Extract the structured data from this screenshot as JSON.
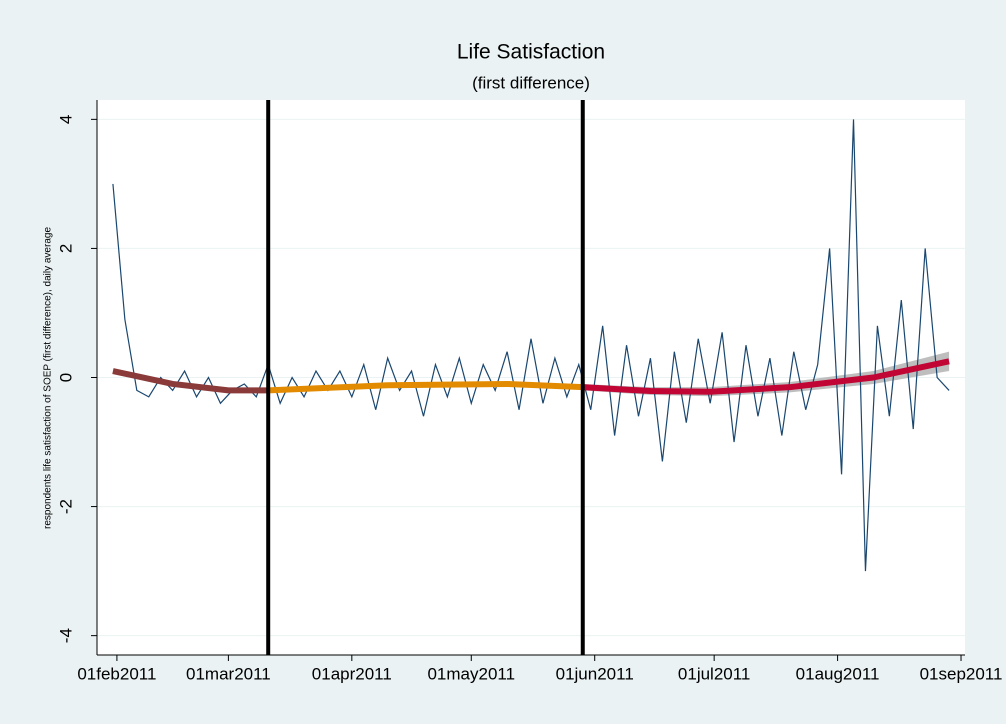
{
  "chart_data": {
    "type": "line",
    "title": "Life Satisfaction",
    "subtitle": "(first difference)",
    "y_label": "respondents life satisfaction of SOEP (first difference), daily average",
    "x": [
      "2011-01-31",
      "2011-02-03",
      "2011-02-06",
      "2011-02-09",
      "2011-02-12",
      "2011-02-15",
      "2011-02-18",
      "2011-02-21",
      "2011-02-24",
      "2011-02-27",
      "2011-03-02",
      "2011-03-05",
      "2011-03-08",
      "2011-03-11",
      "2011-03-14",
      "2011-03-17",
      "2011-03-20",
      "2011-03-23",
      "2011-03-26",
      "2011-03-29",
      "2011-04-01",
      "2011-04-04",
      "2011-04-07",
      "2011-04-10",
      "2011-04-13",
      "2011-04-16",
      "2011-04-19",
      "2011-04-22",
      "2011-04-25",
      "2011-04-28",
      "2011-05-01",
      "2011-05-04",
      "2011-05-07",
      "2011-05-10",
      "2011-05-13",
      "2011-05-16",
      "2011-05-19",
      "2011-05-22",
      "2011-05-25",
      "2011-05-28",
      "2011-05-31",
      "2011-06-03",
      "2011-06-06",
      "2011-06-09",
      "2011-06-12",
      "2011-06-15",
      "2011-06-18",
      "2011-06-21",
      "2011-06-24",
      "2011-06-27",
      "2011-06-30",
      "2011-07-03",
      "2011-07-06",
      "2011-07-09",
      "2011-07-12",
      "2011-07-15",
      "2011-07-18",
      "2011-07-21",
      "2011-07-24",
      "2011-07-27",
      "2011-07-30",
      "2011-08-02",
      "2011-08-05",
      "2011-08-08",
      "2011-08-11",
      "2011-08-14",
      "2011-08-17",
      "2011-08-20",
      "2011-08-23",
      "2011-08-26",
      "2011-08-29"
    ],
    "series": [
      {
        "color": "#1a476f",
        "values": [
          3.0,
          0.9,
          -0.2,
          -0.3,
          0.0,
          -0.2,
          0.1,
          -0.3,
          0.0,
          -0.4,
          -0.2,
          -0.1,
          -0.3,
          0.2,
          -0.4,
          0.0,
          -0.3,
          0.1,
          -0.2,
          0.1,
          -0.3,
          0.2,
          -0.5,
          0.3,
          -0.2,
          0.1,
          -0.6,
          0.2,
          -0.3,
          0.3,
          -0.4,
          0.2,
          -0.2,
          0.4,
          -0.5,
          0.6,
          -0.4,
          0.3,
          -0.3,
          0.2,
          -0.5,
          0.8,
          -0.9,
          0.5,
          -0.6,
          0.3,
          -1.3,
          0.4,
          -0.7,
          0.6,
          -0.4,
          0.7,
          -1.0,
          0.5,
          -0.6,
          0.3,
          -0.9,
          0.4,
          -0.5,
          0.2,
          2.0,
          -1.5,
          4.0,
          -3.0,
          0.8,
          -0.6,
          1.2,
          -0.8,
          2.0,
          0.0,
          -0.2
        ]
      }
    ],
    "band": {
      "color": "#bebebe",
      "x": [
        "2011-05-29",
        "2011-06-15",
        "2011-06-30",
        "2011-07-20",
        "2011-08-10",
        "2011-08-29"
      ],
      "lower": [
        -0.2,
        -0.27,
        -0.29,
        -0.23,
        -0.1,
        0.1
      ],
      "upper": [
        -0.1,
        -0.15,
        -0.15,
        -0.07,
        0.1,
        0.4
      ]
    },
    "smooth": [
      {
        "color": "#8b3a3a",
        "x": [
          "2011-01-31",
          "2011-02-15",
          "2011-03-01",
          "2011-03-11"
        ],
        "values": [
          0.1,
          -0.1,
          -0.2,
          -0.2
        ]
      },
      {
        "color": "#e38b00",
        "x": [
          "2011-03-11",
          "2011-04-10",
          "2011-05-10",
          "2011-05-29"
        ],
        "values": [
          -0.2,
          -0.12,
          -0.1,
          -0.15
        ]
      },
      {
        "color": "#c10534",
        "x": [
          "2011-05-29",
          "2011-06-15",
          "2011-06-30",
          "2011-07-20",
          "2011-08-10",
          "2011-08-29"
        ],
        "values": [
          -0.15,
          -0.21,
          -0.22,
          -0.15,
          0.0,
          0.25
        ]
      }
    ],
    "vlines": {
      "color": "#000000",
      "x": [
        "2011-03-11",
        "2011-05-29"
      ]
    },
    "xlim": [
      "2011-01-27",
      "2011-09-02"
    ],
    "xticks": [
      {
        "value": "2011-02-01",
        "label": "01feb2011"
      },
      {
        "value": "2011-03-01",
        "label": "01mar2011"
      },
      {
        "value": "2011-04-01",
        "label": "01apr2011"
      },
      {
        "value": "2011-05-01",
        "label": "01may2011"
      },
      {
        "value": "2011-06-01",
        "label": "01jun2011"
      },
      {
        "value": "2011-07-01",
        "label": "01jul2011"
      },
      {
        "value": "2011-08-01",
        "label": "01aug2011"
      },
      {
        "value": "2011-09-01",
        "label": "01sep2011"
      }
    ],
    "ylim": [
      -4.3,
      4.3
    ],
    "yticks": [
      -4,
      -2,
      0,
      2,
      4
    ],
    "grid": true
  }
}
